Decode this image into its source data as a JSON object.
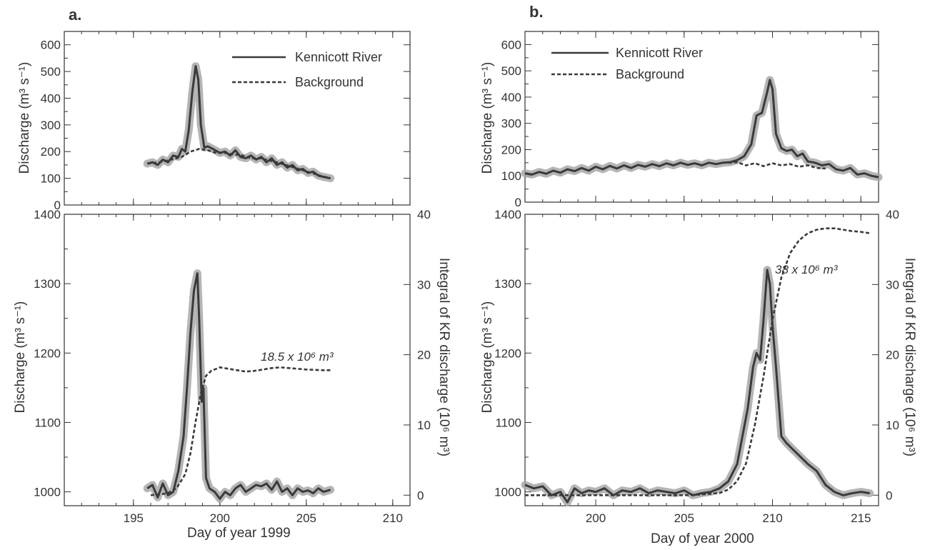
{
  "colors": {
    "main": "#3a3a3a",
    "band": "#a8a8a8",
    "axis": "#333333"
  },
  "chart_data": [
    {
      "panel": "a.",
      "type": "line",
      "ylabel": "Discharge (m³ s⁻¹)",
      "xlim": [
        191,
        211
      ],
      "ylim": [
        0,
        650
      ],
      "xticks": [
        195,
        200,
        205,
        210
      ],
      "yticks": [
        0,
        100,
        200,
        300,
        400,
        500,
        600
      ],
      "legend": {
        "placement": "top-right",
        "entries": [
          "Kennicott River",
          "Background"
        ]
      },
      "series": [
        {
          "name": "Kennicott River",
          "style": "solid",
          "band": true,
          "x": [
            195.8,
            196.1,
            196.4,
            196.7,
            197.0,
            197.3,
            197.6,
            197.8,
            198.0,
            198.2,
            198.4,
            198.6,
            198.75,
            198.9,
            199.1,
            199.3,
            199.6,
            200.0,
            200.3,
            200.6,
            200.9,
            201.2,
            201.5,
            201.8,
            202.1,
            202.4,
            202.7,
            203.0,
            203.3,
            203.6,
            203.9,
            204.2,
            204.5,
            204.8,
            205.1,
            205.4,
            205.7,
            206.0,
            206.4
          ],
          "y": [
            155,
            160,
            150,
            170,
            160,
            185,
            180,
            210,
            200,
            280,
            420,
            520,
            470,
            300,
            215,
            220,
            210,
            195,
            200,
            185,
            205,
            180,
            175,
            185,
            170,
            180,
            160,
            175,
            150,
            160,
            140,
            150,
            130,
            135,
            120,
            125,
            110,
            105,
            100
          ]
        },
        {
          "name": "Background",
          "style": "dashed",
          "band": false,
          "x": [
            195.8,
            196.5,
            197.2,
            197.8,
            198.3,
            198.8,
            199.3,
            199.8,
            200.3,
            200.8,
            201.3,
            201.8,
            202.3,
            202.8,
            203.3,
            203.8,
            204.3,
            204.8,
            205.3,
            205.8,
            206.4
          ],
          "y": [
            155,
            160,
            170,
            180,
            200,
            210,
            205,
            195,
            195,
            190,
            185,
            175,
            175,
            168,
            160,
            150,
            140,
            130,
            120,
            110,
            100
          ]
        }
      ]
    },
    {
      "panel": "a.",
      "type": "line",
      "xlabel": "Day of year 1999",
      "ylabel": "Discharge (m³ s⁻¹)",
      "y2label": "Integral of KR discharge (10⁶ m³)",
      "xlim": [
        191,
        211
      ],
      "ylim": [
        980,
        1400
      ],
      "y2lim": [
        -1.5,
        40
      ],
      "xticks": [
        195,
        200,
        205,
        210
      ],
      "yticks": [
        1000,
        1100,
        1200,
        1300,
        1400
      ],
      "y2ticks": [
        0,
        10,
        20,
        30,
        40
      ],
      "annotation": "18.5 x 10⁶ m³",
      "series": [
        {
          "axis": "left",
          "style": "solid",
          "band": true,
          "x": [
            195.8,
            196.1,
            196.4,
            196.7,
            197.0,
            197.3,
            197.6,
            197.9,
            198.1,
            198.3,
            198.5,
            198.7,
            198.8,
            198.95,
            199.05,
            199.2,
            199.4,
            199.7,
            200.0,
            200.3,
            200.6,
            200.9,
            201.2,
            201.5,
            201.8,
            202.1,
            202.4,
            202.7,
            203.0,
            203.3,
            203.6,
            203.9,
            204.2,
            204.5,
            204.8,
            205.1,
            205.4,
            205.7,
            206.0,
            206.4
          ],
          "y": [
            1005,
            1010,
            992,
            1012,
            995,
            1000,
            1030,
            1080,
            1150,
            1230,
            1290,
            1315,
            1250,
            1130,
            1150,
            1020,
            1005,
            1000,
            990,
            1000,
            995,
            1005,
            1010,
            1000,
            1005,
            1010,
            1008,
            1012,
            1003,
            1015,
            1000,
            1005,
            995,
            1005,
            1000,
            1002,
            998,
            1005,
            1000,
            1003
          ]
        },
        {
          "axis": "right",
          "style": "dashed",
          "band": false,
          "x": [
            196.0,
            196.5,
            197.0,
            197.5,
            198.0,
            198.3,
            198.6,
            198.9,
            199.2,
            199.5,
            200.0,
            200.5,
            201.0,
            201.5,
            202.0,
            202.5,
            203.0,
            203.5,
            204.0,
            204.5,
            205.0,
            205.5,
            206.0,
            206.4
          ],
          "y": [
            0,
            0.1,
            0.3,
            1.0,
            3.0,
            6.0,
            10.5,
            14.5,
            17.0,
            17.7,
            18.2,
            18.0,
            17.8,
            17.6,
            17.7,
            17.9,
            18.1,
            18.2,
            18.1,
            18.0,
            17.9,
            17.85,
            17.8,
            17.8
          ]
        }
      ]
    },
    {
      "panel": "b.",
      "type": "line",
      "ylabel": "Discharge (m³ s⁻¹)",
      "xlim": [
        196,
        216
      ],
      "ylim": [
        0,
        650
      ],
      "xticks": [
        200,
        205,
        210,
        215
      ],
      "yticks": [
        0,
        100,
        200,
        300,
        400,
        500,
        600
      ],
      "legend": {
        "placement": "top-left",
        "entries": [
          "Kennicott River",
          "Background"
        ]
      },
      "series": [
        {
          "name": "Kennicott River",
          "style": "solid",
          "band": true,
          "x": [
            196.0,
            196.4,
            196.8,
            197.2,
            197.6,
            198.0,
            198.4,
            198.8,
            199.2,
            199.6,
            200.0,
            200.4,
            200.8,
            201.2,
            201.6,
            202.0,
            202.4,
            202.8,
            203.2,
            203.6,
            204.0,
            204.4,
            204.8,
            205.2,
            205.6,
            206.0,
            206.4,
            206.8,
            207.2,
            207.6,
            208.0,
            208.4,
            208.8,
            209.1,
            209.4,
            209.7,
            209.85,
            210.0,
            210.2,
            210.5,
            210.8,
            211.1,
            211.4,
            211.7,
            212.0,
            212.4,
            212.8,
            213.2,
            213.6,
            214.0,
            214.4,
            214.8,
            215.2,
            215.6,
            216.0
          ],
          "y": [
            110,
            105,
            115,
            108,
            120,
            112,
            125,
            118,
            130,
            120,
            135,
            125,
            138,
            128,
            140,
            130,
            142,
            135,
            145,
            137,
            148,
            140,
            150,
            142,
            148,
            140,
            150,
            145,
            150,
            152,
            160,
            175,
            220,
            330,
            340,
            420,
            465,
            430,
            260,
            205,
            195,
            200,
            175,
            185,
            155,
            150,
            140,
            145,
            125,
            120,
            130,
            105,
            110,
            100,
            95
          ]
        },
        {
          "name": "Background",
          "style": "dashed",
          "band": false,
          "x": [
            207.5,
            208.0,
            208.5,
            209.0,
            209.5,
            210.0,
            210.5,
            211.0,
            211.5,
            212.0,
            212.5,
            213.0
          ],
          "y": [
            150,
            152,
            140,
            148,
            137,
            148,
            140,
            145,
            135,
            140,
            130,
            128
          ]
        }
      ]
    },
    {
      "panel": "b.",
      "type": "line",
      "xlabel": "Day of year 2000",
      "ylabel": "Discharge (m³ s⁻¹)",
      "y2label": "Integral of KR discharge (10⁶ m³)",
      "xlim": [
        196,
        216
      ],
      "ylim": [
        980,
        1400
      ],
      "y2lim": [
        -1.5,
        40
      ],
      "xticks": [
        200,
        205,
        210,
        215
      ],
      "yticks": [
        1000,
        1100,
        1200,
        1300,
        1400
      ],
      "y2ticks": [
        0,
        10,
        20,
        30,
        40
      ],
      "annotation": "38 x 10⁶ m³",
      "series": [
        {
          "axis": "left",
          "style": "solid",
          "band": true,
          "x": [
            196.0,
            196.5,
            197.0,
            197.5,
            198.0,
            198.4,
            198.8,
            199.2,
            199.6,
            200.0,
            200.5,
            201.0,
            201.5,
            202.0,
            202.5,
            203.0,
            203.5,
            204.0,
            204.5,
            205.0,
            205.5,
            206.0,
            206.5,
            207.0,
            207.5,
            208.0,
            208.3,
            208.6,
            208.9,
            209.1,
            209.3,
            209.5,
            209.7,
            209.85,
            210.0,
            210.2,
            210.5,
            210.8,
            211.2,
            211.6,
            212.0,
            212.5,
            213.0,
            213.5,
            214.0,
            214.5,
            215.0,
            215.5
          ],
          "y": [
            1010,
            1005,
            1008,
            995,
            1000,
            985,
            1005,
            998,
            1002,
            1000,
            1005,
            995,
            1002,
            1000,
            1005,
            998,
            1002,
            1000,
            998,
            1002,
            995,
            998,
            1000,
            1005,
            1015,
            1040,
            1080,
            1120,
            1180,
            1200,
            1190,
            1250,
            1320,
            1300,
            1240,
            1180,
            1080,
            1070,
            1060,
            1050,
            1040,
            1030,
            1010,
            1000,
            995,
            998,
            1000,
            998
          ]
        },
        {
          "axis": "right",
          "style": "dashed",
          "band": false,
          "x": [
            196.0,
            198.0,
            200.0,
            202.0,
            204.0,
            205.0,
            206.0,
            207.0,
            207.5,
            208.0,
            208.5,
            209.0,
            209.5,
            210.0,
            210.5,
            211.0,
            211.5,
            212.0,
            212.5,
            213.0,
            213.5,
            214.0,
            214.5,
            215.0,
            215.5
          ],
          "y": [
            0,
            0,
            0,
            0,
            0,
            0,
            0.1,
            0.3,
            0.8,
            2.0,
            4.5,
            10,
            17,
            25,
            31,
            34.5,
            36.3,
            37.3,
            37.8,
            38.0,
            38.0,
            37.8,
            37.6,
            37.5,
            37.3
          ]
        }
      ]
    }
  ],
  "labels": {
    "panel_a": "a.",
    "panel_b": "b.",
    "legend_kennicott": "Kennicott River",
    "legend_background": "Background",
    "discharge_label": "Discharge (m³ s⁻¹)",
    "integral_label": "Integral of KR discharge (10⁶ m³)",
    "xlabel_a": "Day of year 1999",
    "xlabel_b": "Day of year 2000",
    "annot_a": "18.5 x 10⁶ m³",
    "annot_b": "38 x 10⁶ m³"
  }
}
